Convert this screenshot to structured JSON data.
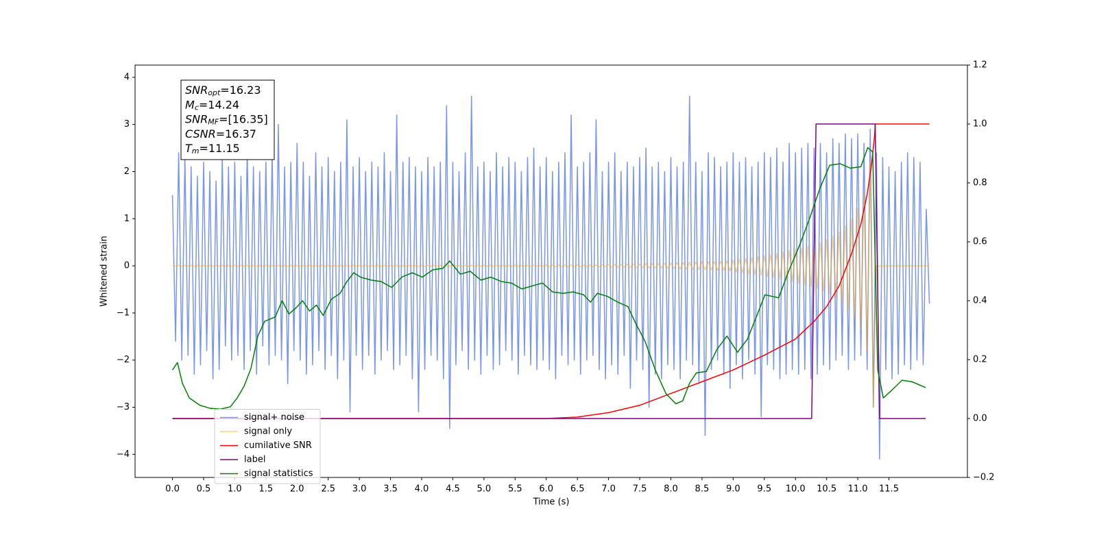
{
  "chart_data": {
    "type": "line",
    "xlabel": "Time (s)",
    "ylabel": "Whitened strain",
    "xlim": [
      -0.6,
      12.76
    ],
    "ylim": [
      -4.49,
      4.26
    ],
    "y2lim": [
      -0.2,
      1.2
    ],
    "xticks": [
      {
        "value": 0,
        "label": "0.0"
      },
      0.5,
      {
        "value": 1,
        "label": "1.0"
      },
      1.5,
      {
        "value": 2,
        "label": "2.0"
      },
      2.5,
      {
        "value": 3,
        "label": "3.0"
      },
      3.5,
      {
        "value": 4,
        "label": "4.0"
      },
      4.5,
      {
        "value": 5,
        "label": "5.0"
      },
      5.5,
      {
        "value": 6,
        "label": "6.0"
      },
      6.5,
      {
        "value": 7,
        "label": "7.0"
      },
      7.5,
      {
        "value": 8,
        "label": "8.0"
      },
      8.5,
      {
        "value": 9,
        "label": "9.0"
      },
      9.5,
      {
        "value": 10,
        "label": "10.0"
      },
      10.5,
      {
        "value": 11,
        "label": "11.0"
      },
      11.5
    ],
    "yticks": [
      {
        "value": -4,
        "label": "−4"
      },
      {
        "value": -3,
        "label": "−3"
      },
      {
        "value": -2,
        "label": "−2"
      },
      {
        "value": -1,
        "label": "−1"
      },
      0,
      1,
      2,
      3,
      4
    ],
    "y2ticks": [
      {
        "value": -0.2,
        "label": "−0.2"
      },
      {
        "value": 0,
        "label": "0.0"
      },
      0.2,
      0.4,
      0.6,
      0.8,
      {
        "value": 1,
        "label": "1.0"
      },
      1.2
    ],
    "legend": "lower left",
    "annotation": [
      {
        "var": "SNR",
        "sub": "opt",
        "text": "=16.23"
      },
      {
        "var": "M",
        "sub": "c",
        "text": "=14.24"
      },
      {
        "var": "SNR",
        "sub": "MF",
        "text": "=[16.35]"
      },
      {
        "var": "CSNR",
        "text": "=16.37"
      },
      {
        "var": "T",
        "sub": "m",
        "text": "=11.15"
      }
    ],
    "x": [
      0,
      0.05,
      0.1,
      0.15,
      0.2,
      0.25,
      0.3,
      0.35,
      0.4,
      0.45,
      0.5,
      0.55,
      0.6,
      0.65,
      0.7,
      0.75,
      0.8,
      0.85,
      0.9,
      0.95,
      1,
      1.05,
      1.1,
      1.15,
      1.2,
      1.25,
      1.3,
      1.35,
      1.4,
      1.45,
      1.5,
      1.55,
      1.6,
      1.65,
      1.7,
      1.75,
      1.8,
      1.85,
      1.9,
      1.95,
      2,
      2.05,
      2.1,
      2.15,
      2.2,
      2.25,
      2.3,
      2.35,
      2.4,
      2.45,
      2.5,
      2.55,
      2.6,
      2.65,
      2.7,
      2.75,
      2.8,
      2.85,
      2.9,
      2.95,
      3,
      3.05,
      3.1,
      3.15,
      3.2,
      3.25,
      3.3,
      3.35,
      3.4,
      3.45,
      3.5,
      3.55,
      3.6,
      3.65,
      3.7,
      3.75,
      3.8,
      3.85,
      3.9,
      3.95,
      4,
      4.05,
      4.1,
      4.15,
      4.2,
      4.25,
      4.3,
      4.35,
      4.4,
      4.45,
      4.5,
      4.55,
      4.6,
      4.65,
      4.7,
      4.75,
      4.8,
      4.85,
      4.9,
      4.95,
      5,
      5.05,
      5.1,
      5.15,
      5.2,
      5.25,
      5.3,
      5.35,
      5.4,
      5.45,
      5.5,
      5.55,
      5.6,
      5.65,
      5.7,
      5.75,
      5.8,
      5.85,
      5.9,
      5.95,
      6,
      6.05,
      6.1,
      6.15,
      6.2,
      6.25,
      6.3,
      6.35,
      6.4,
      6.45,
      6.5,
      6.55,
      6.6,
      6.65,
      6.7,
      6.75,
      6.8,
      6.85,
      6.9,
      6.95,
      7,
      7.05,
      7.1,
      7.15,
      7.2,
      7.25,
      7.3,
      7.35,
      7.4,
      7.45,
      7.5,
      7.55,
      7.6,
      7.65,
      7.7,
      7.75,
      7.8,
      7.85,
      7.9,
      7.95,
      8,
      8.05,
      8.1,
      8.15,
      8.2,
      8.25,
      8.3,
      8.35,
      8.4,
      8.45,
      8.5,
      8.55,
      8.6,
      8.65,
      8.7,
      8.75,
      8.8,
      8.85,
      8.9,
      8.95,
      9,
      9.05,
      9.1,
      9.15,
      9.2,
      9.25,
      9.3,
      9.35,
      9.4,
      9.45,
      9.5,
      9.55,
      9.6,
      9.65,
      9.7,
      9.75,
      9.8,
      9.85,
      9.9,
      9.95,
      10,
      10.05,
      10.1,
      10.15,
      10.2,
      10.25,
      10.3,
      10.35,
      10.4,
      10.45,
      10.5,
      10.55,
      10.6,
      10.65,
      10.7,
      10.75,
      10.8,
      10.85,
      10.9,
      10.95,
      11,
      11.05,
      11.1,
      11.15,
      11.2,
      11.25,
      11.3,
      11.35,
      11.4,
      11.45,
      11.5,
      11.55,
      11.6,
      11.65,
      11.7,
      11.75,
      11.8,
      11.85,
      11.9,
      11.95,
      12,
      12.05,
      12.1,
      12.15
    ],
    "series": [
      {
        "name": "signal+ noise",
        "color": "royalblue",
        "alpha": 0.7,
        "values": [
          1.5,
          -1.6,
          2.4,
          -2.0,
          2.3,
          -1.9,
          2.1,
          -2.3,
          1.9,
          -2.1,
          2.2,
          -1.8,
          2.0,
          -2.4,
          1.8,
          -2.2,
          2.3,
          -1.7,
          2.1,
          -2.0,
          2.2,
          -1.9,
          1.9,
          -2.2,
          2.5,
          -1.8,
          2.1,
          -2.3,
          2.0,
          -1.7,
          2.2,
          -2.1,
          2.4,
          -1.9,
          3.0,
          -2.0,
          2.1,
          -2.5,
          2.2,
          -1.8,
          2.6,
          -2.0,
          2.2,
          -2.3,
          1.9,
          -2.1,
          2.4,
          -1.8,
          2.1,
          -2.2,
          2.3,
          -1.9,
          2.0,
          -2.4,
          2.2,
          -2.0,
          3.1,
          -3.1,
          2.1,
          -1.9,
          2.3,
          -2.2,
          2.0,
          -1.9,
          2.2,
          -2.3,
          2.1,
          -2.0,
          2.4,
          -1.8,
          2.0,
          -2.2,
          3.2,
          -2.1,
          2.2,
          -1.9,
          2.3,
          -2.4,
          2.1,
          -3.1,
          2.0,
          -2.2,
          2.3,
          -1.9,
          2.1,
          -2.0,
          2.2,
          -2.4,
          3.4,
          -3.45,
          2.2,
          -2.1,
          2.0,
          -1.8,
          2.4,
          -2.2,
          3.6,
          -2.0,
          2.1,
          -2.3,
          2.2,
          -1.9,
          2.0,
          -2.2,
          2.4,
          -2.1,
          2.1,
          -1.8,
          2.3,
          -2.0,
          2.2,
          -2.3,
          2.0,
          -1.9,
          2.3,
          -2.1,
          2.5,
          -2.2,
          2.1,
          -2.0,
          2.3,
          -2.2,
          2.0,
          -2.4,
          2.2,
          -1.9,
          2.4,
          -2.1,
          3.2,
          -2.0,
          2.1,
          -2.3,
          2.2,
          -2.0,
          2.4,
          -1.9,
          3.1,
          -2.2,
          2.0,
          -2.4,
          2.2,
          -2.1,
          2.4,
          -2.3,
          2.0,
          -1.9,
          2.2,
          -2.6,
          2.1,
          -2.0,
          2.3,
          -2.2,
          2.5,
          -3.0,
          2.1,
          -2.3,
          2.2,
          -2.4,
          2.0,
          -2.1,
          2.3,
          -2.2,
          2.1,
          -2.4,
          2.2,
          -2.0,
          3.6,
          -2.1,
          2.2,
          -2.5,
          2.0,
          -3.6,
          2.4,
          -2.2,
          2.3,
          -2.0,
          2.1,
          -2.3,
          2.2,
          -2.6,
          2.4,
          -2.1,
          2.2,
          -2.4,
          2.3,
          -2.0,
          2.1,
          -2.3,
          2.2,
          -3.2,
          2.4,
          -2.1,
          2.3,
          -2.2,
          2.5,
          -2.4,
          2.2,
          -2.3,
          2.6,
          -2.2,
          2.4,
          -2.3,
          2.5,
          -2.2,
          2.6,
          -2.4,
          2.5,
          -2.3,
          2.6,
          -2.1,
          2.4,
          -2.2,
          2.7,
          -2.0,
          2.6,
          -1.9,
          2.8,
          -2.2,
          2.7,
          -2.0,
          2.8,
          -1.9,
          2.6,
          -2.2,
          2.9,
          -3.0,
          2.4,
          -4.1,
          2.3,
          -2.2,
          2.1,
          -2.4,
          2.0,
          -2.3,
          2.2,
          -2.1,
          2.4,
          -2.2,
          2.3,
          -2.0,
          2.2,
          -2.1,
          1.2,
          -0.8
        ]
      },
      {
        "name": "signal only",
        "color": "orange",
        "alpha": 0.5,
        "values": [
          0.01,
          -0.01,
          0.01,
          -0.01,
          0.01,
          -0.01,
          0.01,
          -0.01,
          0.01,
          -0.01,
          0.01,
          -0.01,
          0.01,
          -0.01,
          0.01,
          -0.01,
          0.01,
          -0.01,
          0.01,
          -0.01,
          0.01,
          -0.01,
          0.01,
          -0.01,
          0.01,
          -0.01,
          0.01,
          -0.01,
          0.01,
          -0.01,
          0.01,
          -0.01,
          0.01,
          -0.01,
          0.01,
          -0.01,
          0.01,
          -0.01,
          0.01,
          -0.01,
          0.01,
          -0.01,
          0.01,
          -0.01,
          0.01,
          -0.01,
          0.01,
          -0.01,
          0.01,
          -0.01,
          0.01,
          -0.01,
          0.01,
          -0.01,
          0.01,
          -0.01,
          0.01,
          -0.01,
          0.01,
          -0.01,
          0.01,
          -0.01,
          0.01,
          -0.01,
          0.01,
          -0.01,
          0.01,
          -0.01,
          0.01,
          -0.01,
          0.01,
          -0.01,
          0.01,
          -0.01,
          0.01,
          -0.01,
          0.01,
          -0.01,
          0.01,
          -0.01,
          0.01,
          -0.01,
          0.01,
          -0.01,
          0.01,
          -0.01,
          0.01,
          -0.01,
          0.01,
          -0.01,
          0.01,
          -0.01,
          0.01,
          -0.01,
          0.01,
          -0.01,
          0.01,
          -0.01,
          0.01,
          -0.01,
          0.01,
          -0.01,
          0.01,
          -0.01,
          0.01,
          -0.01,
          0.01,
          -0.01,
          0.01,
          -0.01,
          0.01,
          -0.01,
          0.01,
          -0.01,
          0.01,
          -0.01,
          0.01,
          -0.01,
          0.01,
          -0.01,
          0.02,
          -0.02,
          0.02,
          -0.02,
          0.02,
          -0.02,
          0.02,
          -0.02,
          0.02,
          -0.02,
          0.02,
          -0.02,
          0.02,
          -0.02,
          0.02,
          -0.02,
          0.02,
          -0.02,
          0.02,
          -0.02,
          0.03,
          -0.03,
          0.03,
          -0.03,
          0.03,
          -0.03,
          0.04,
          -0.04,
          0.04,
          -0.04,
          0.04,
          -0.04,
          0.05,
          -0.05,
          0.05,
          -0.05,
          0.05,
          -0.05,
          0.06,
          -0.06,
          0.06,
          -0.06,
          0.07,
          -0.07,
          0.07,
          -0.07,
          0.08,
          -0.08,
          0.08,
          -0.08,
          0.09,
          -0.09,
          0.09,
          -0.09,
          0.1,
          -0.1,
          0.1,
          -0.1,
          0.11,
          -0.11,
          0.12,
          -0.13,
          0.14,
          -0.15,
          0.16,
          -0.17,
          0.18,
          -0.19,
          0.2,
          -0.21,
          0.22,
          -0.23,
          0.24,
          -0.25,
          0.27,
          -0.28,
          0.3,
          -0.31,
          0.33,
          -0.34,
          0.36,
          -0.37,
          0.39,
          -0.4,
          0.42,
          -0.44,
          0.46,
          -0.48,
          0.5,
          -0.53,
          0.56,
          -0.59,
          0.63,
          -0.67,
          0.72,
          -0.78,
          0.85,
          -0.92,
          1.0,
          -1.1,
          1.22,
          -1.36,
          1.55,
          -1.8,
          2.2,
          -3.0,
          0,
          0,
          0,
          0,
          0,
          0,
          0,
          0,
          0,
          0,
          0,
          0,
          0,
          0,
          0,
          0,
          0,
          0
        ]
      },
      {
        "name": "cumilative SNR",
        "color": "red",
        "alpha": 1,
        "axis": "y2",
        "x": [
          0,
          6,
          6.5,
          7,
          7.5,
          8,
          8.5,
          9,
          9.5,
          10,
          10.3,
          10.5,
          10.7,
          10.9,
          11.05,
          11.15,
          11.22,
          11.27,
          11.28,
          12.15
        ],
        "values": [
          0,
          0,
          0.005,
          0.02,
          0.045,
          0.085,
          0.125,
          0.165,
          0.215,
          0.27,
          0.33,
          0.38,
          0.45,
          0.56,
          0.66,
          0.76,
          0.86,
          0.96,
          1.0,
          1.0
        ]
      },
      {
        "name": "label",
        "color": "purple",
        "alpha": 1,
        "axis": "y2",
        "x": [
          0,
          10.26,
          10.33,
          11.28,
          11.35,
          12.09
        ],
        "values": [
          0,
          0,
          1,
          1,
          0,
          0
        ]
      },
      {
        "name": "signal statistics",
        "color": "green",
        "alpha": 1,
        "axis": "y2",
        "x": [
          0,
          0.08,
          0.16,
          0.27,
          0.44,
          0.6,
          0.77,
          0.93,
          1.04,
          1.15,
          1.26,
          1.37,
          1.48,
          1.65,
          1.76,
          1.87,
          1.98,
          2.09,
          2.2,
          2.31,
          2.42,
          2.55,
          2.69,
          2.8,
          2.91,
          3.02,
          3.19,
          3.35,
          3.52,
          3.68,
          3.85,
          4.01,
          4.18,
          4.34,
          4.45,
          4.62,
          4.78,
          4.95,
          5.11,
          5.28,
          5.44,
          5.61,
          5.77,
          5.94,
          6.1,
          6.27,
          6.43,
          6.6,
          6.71,
          6.82,
          6.98,
          7.15,
          7.31,
          7.42,
          7.59,
          7.75,
          7.92,
          8.08,
          8.19,
          8.3,
          8.41,
          8.57,
          8.74,
          8.9,
          9.07,
          9.23,
          9.4,
          9.51,
          9.73,
          9.89,
          10.06,
          10.22,
          10.39,
          10.55,
          10.72,
          10.88,
          11.05,
          11.16,
          11.24,
          11.32,
          11.41,
          11.54,
          11.71,
          11.87,
          12.09
        ],
        "values": [
          0.165,
          0.19,
          0.12,
          0.07,
          0.045,
          0.035,
          0.032,
          0.04,
          0.07,
          0.11,
          0.17,
          0.28,
          0.33,
          0.345,
          0.4,
          0.355,
          0.375,
          0.4,
          0.365,
          0.385,
          0.35,
          0.405,
          0.425,
          0.465,
          0.495,
          0.48,
          0.47,
          0.465,
          0.445,
          0.48,
          0.495,
          0.48,
          0.505,
          0.51,
          0.535,
          0.49,
          0.5,
          0.47,
          0.48,
          0.465,
          0.46,
          0.44,
          0.45,
          0.46,
          0.43,
          0.425,
          0.43,
          0.42,
          0.395,
          0.425,
          0.415,
          0.395,
          0.38,
          0.33,
          0.26,
          0.165,
          0.085,
          0.05,
          0.06,
          0.12,
          0.155,
          0.16,
          0.235,
          0.28,
          0.225,
          0.27,
          0.36,
          0.42,
          0.41,
          0.5,
          0.585,
          0.675,
          0.78,
          0.86,
          0.865,
          0.85,
          0.855,
          0.92,
          0.905,
          0.165,
          0.07,
          0.095,
          0.13,
          0.125,
          0.105
        ]
      }
    ]
  }
}
